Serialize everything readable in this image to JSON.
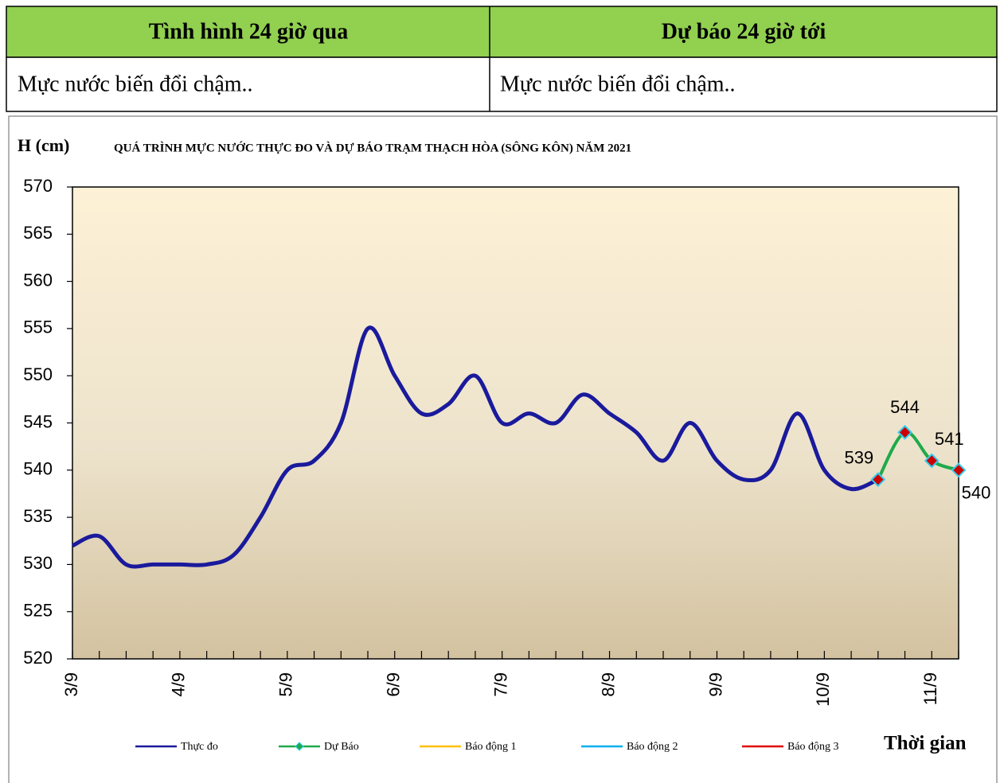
{
  "table": {
    "header": [
      "Tình hình 24 giờ qua",
      "Dự báo 24 giờ tới"
    ],
    "rows": [
      [
        "Mực nước biến đổi chậm..",
        "Mực nước biến đổi chậm.."
      ]
    ]
  },
  "chart_data": {
    "type": "line",
    "title": "QUÁ TRÌNH MỰC NƯỚC THỰC ĐO VÀ DỰ BÁO TRẠM THẠCH HÒA (SÔNG KÔN) NĂM 2021",
    "y_label": "H (cm)",
    "x_label": "Thời gian",
    "categories": [
      "3/9",
      null,
      null,
      null,
      "4/9",
      null,
      null,
      null,
      "5/9",
      null,
      null,
      null,
      "6/9",
      null,
      null,
      null,
      "7/9",
      null,
      null,
      null,
      "8/9",
      null,
      null,
      null,
      "9/9",
      null,
      null,
      null,
      "10/9",
      null,
      null,
      null,
      "11/9",
      null
    ],
    "series": [
      {
        "name": "Thực đo",
        "color": "#1a1a9c",
        "values": [
          532,
          533,
          530,
          530,
          530,
          530,
          531,
          535,
          540,
          541,
          545,
          555,
          550,
          546,
          547,
          550,
          545,
          546,
          545,
          548,
          546,
          544,
          541,
          545,
          541,
          539,
          540,
          546,
          540,
          538,
          539,
          null,
          null,
          null
        ]
      },
      {
        "name": "Dự Báo",
        "color": "#1faa4a",
        "marker_color": "#cc0000",
        "marker_edge": "#33ccee",
        "values": [
          null,
          null,
          null,
          null,
          null,
          null,
          null,
          null,
          null,
          null,
          null,
          null,
          null,
          null,
          null,
          null,
          null,
          null,
          null,
          null,
          null,
          null,
          null,
          null,
          null,
          null,
          null,
          null,
          null,
          null,
          539,
          544,
          541,
          540
        ]
      },
      {
        "name": "Báo động 1",
        "color": "#ffc000",
        "values": [
          null,
          null,
          null,
          null,
          null,
          null,
          null,
          null,
          null,
          null,
          null,
          null,
          null,
          null,
          null,
          null,
          null,
          null,
          null,
          null,
          null,
          null,
          null,
          null,
          null,
          null,
          null,
          null,
          null,
          null,
          null,
          null,
          null,
          null
        ]
      },
      {
        "name": "Báo động 2",
        "color": "#00b0f0",
        "values": [
          null,
          null,
          null,
          null,
          null,
          null,
          null,
          null,
          null,
          null,
          null,
          null,
          null,
          null,
          null,
          null,
          null,
          null,
          null,
          null,
          null,
          null,
          null,
          null,
          null,
          null,
          null,
          null,
          null,
          null,
          null,
          null,
          null,
          null
        ]
      },
      {
        "name": "Báo động 3",
        "color": "#e00000",
        "values": [
          null,
          null,
          null,
          null,
          null,
          null,
          null,
          null,
          null,
          null,
          null,
          null,
          null,
          null,
          null,
          null,
          null,
          null,
          null,
          null,
          null,
          null,
          null,
          null,
          null,
          null,
          null,
          null,
          null,
          null,
          null,
          null,
          null,
          null
        ]
      }
    ],
    "ylim": [
      520,
      570
    ],
    "yticks": [
      520,
      525,
      530,
      535,
      540,
      545,
      550,
      555,
      560,
      565,
      570
    ],
    "grid": false,
    "legend": "bottom"
  }
}
